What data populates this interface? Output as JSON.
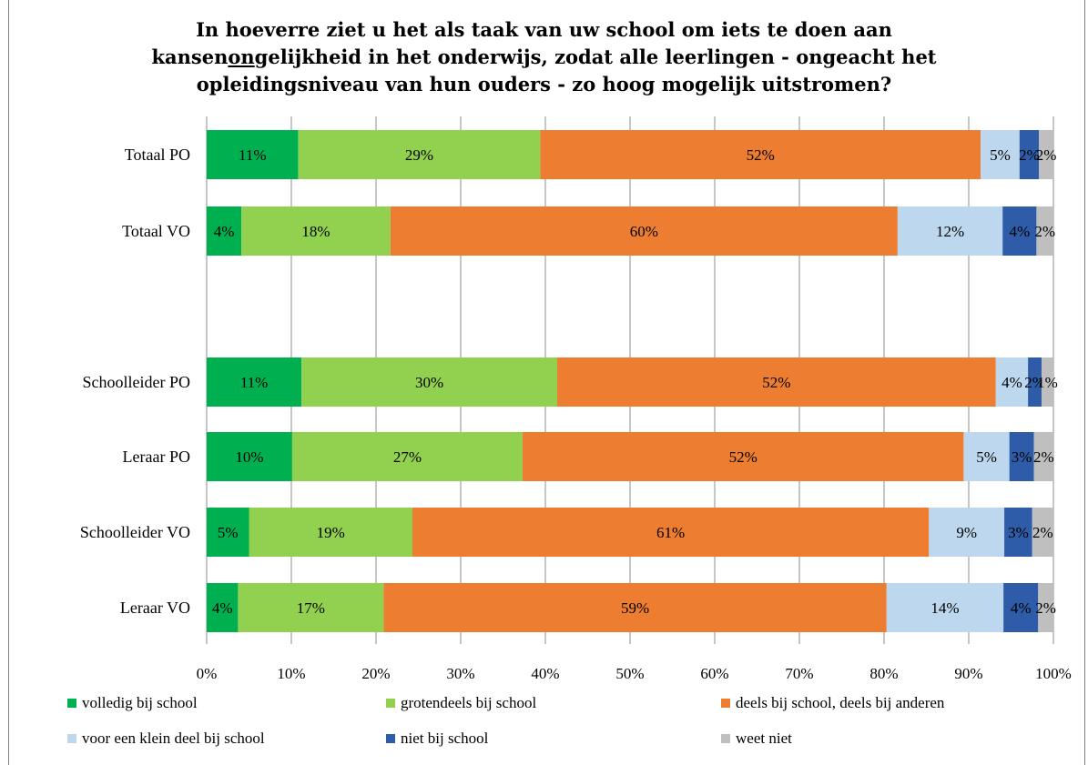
{
  "chart_data": {
    "type": "bar",
    "orientation": "horizontal",
    "stacked": true,
    "title_lines": [
      "In hoeverre ziet u het als taak van uw school om iets te doen aan",
      "kansenongelijkheid in het onderwijs, zodat alle leerlingen - ongeacht het",
      "opleidingsniveau van hun ouders - zo hoog mogelijk uitstromen?"
    ],
    "title_underline": "ongelijkheid",
    "categories": [
      "Totaal PO",
      "Totaal VO",
      "",
      "Schoolleider PO",
      "Leraar PO",
      "Schoolleider VO",
      "Leraar VO"
    ],
    "series": [
      {
        "name": "volledig bij school",
        "color": "#00b050",
        "values": [
          10.8,
          4.1,
          null,
          11.2,
          10.1,
          5.0,
          3.7
        ],
        "labels": [
          "11%",
          "4%",
          "",
          "11%",
          "10%",
          "5%",
          "4%"
        ]
      },
      {
        "name": "grotendeels bij school",
        "color": "#92d050",
        "values": [
          28.6,
          17.6,
          null,
          30.2,
          27.2,
          19.3,
          17.2
        ],
        "labels": [
          "29%",
          "18%",
          "",
          "30%",
          "27%",
          "19%",
          "17%"
        ]
      },
      {
        "name": "deels bij school, deels bij anderen",
        "color": "#ed7d31",
        "values": [
          52.0,
          59.9,
          null,
          51.8,
          52.1,
          61.0,
          59.4
        ],
        "labels": [
          "52%",
          "60%",
          "",
          "52%",
          "52%",
          "61%",
          "59%"
        ]
      },
      {
        "name": "voor een klein deel bij school",
        "color": "#bdd7ee",
        "values": [
          4.6,
          12.4,
          null,
          3.8,
          5.4,
          8.9,
          13.8
        ],
        "labels": [
          "5%",
          "12%",
          "",
          "4%",
          "5%",
          "9%",
          "14%"
        ]
      },
      {
        "name": "niet bij school",
        "color": "#2e5ca8",
        "values": [
          2.3,
          4.0,
          null,
          1.6,
          2.9,
          3.3,
          4.1
        ],
        "labels": [
          "2%",
          "4%",
          "",
          "2%",
          "3%",
          "3%",
          "4%"
        ]
      },
      {
        "name": "weet niet",
        "color": "#bfbfbf",
        "values": [
          1.7,
          2.0,
          null,
          1.4,
          2.3,
          2.5,
          1.8
        ],
        "labels": [
          "2%",
          "2%",
          "",
          "1%",
          "2%",
          "2%",
          "2%"
        ]
      }
    ],
    "xlim": [
      0,
      100
    ],
    "x_ticks": [
      "0%",
      "10%",
      "20%",
      "30%",
      "40%",
      "50%",
      "60%",
      "70%",
      "80%",
      "90%",
      "100%"
    ],
    "grid": true,
    "legend_position": "bottom"
  }
}
